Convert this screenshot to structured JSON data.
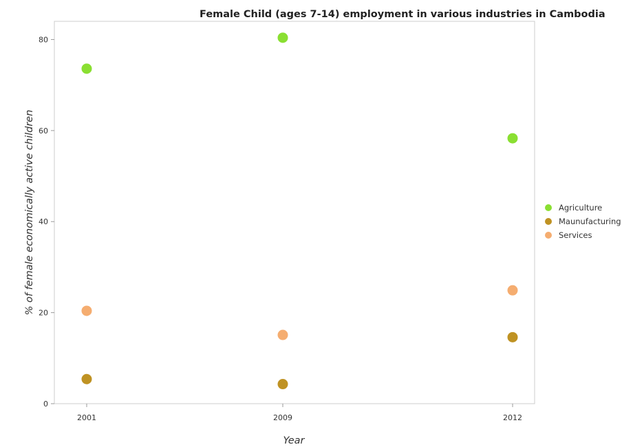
{
  "chart_data": {
    "type": "scatter",
    "title": "Female Child (ages 7-14) employment in various industries in Cambodia",
    "xlabel": "Year",
    "ylabel": "% of female economically active children",
    "categories": [
      "2001",
      "2009",
      "2012"
    ],
    "ylim": [
      0,
      84
    ],
    "yticks": [
      0,
      20,
      40,
      60,
      80
    ],
    "grid": false,
    "legend_position": "right",
    "series": [
      {
        "name": "Agriculture",
        "color": "#7ddb1c",
        "values": [
          73.6,
          80.4,
          58.3
        ]
      },
      {
        "name": "Maunufacturing",
        "color": "#b8860b",
        "values": [
          5.4,
          4.3,
          14.6
        ]
      },
      {
        "name": "Services",
        "color": "#f4a460",
        "values": [
          20.4,
          15.1,
          24.9
        ]
      }
    ]
  }
}
